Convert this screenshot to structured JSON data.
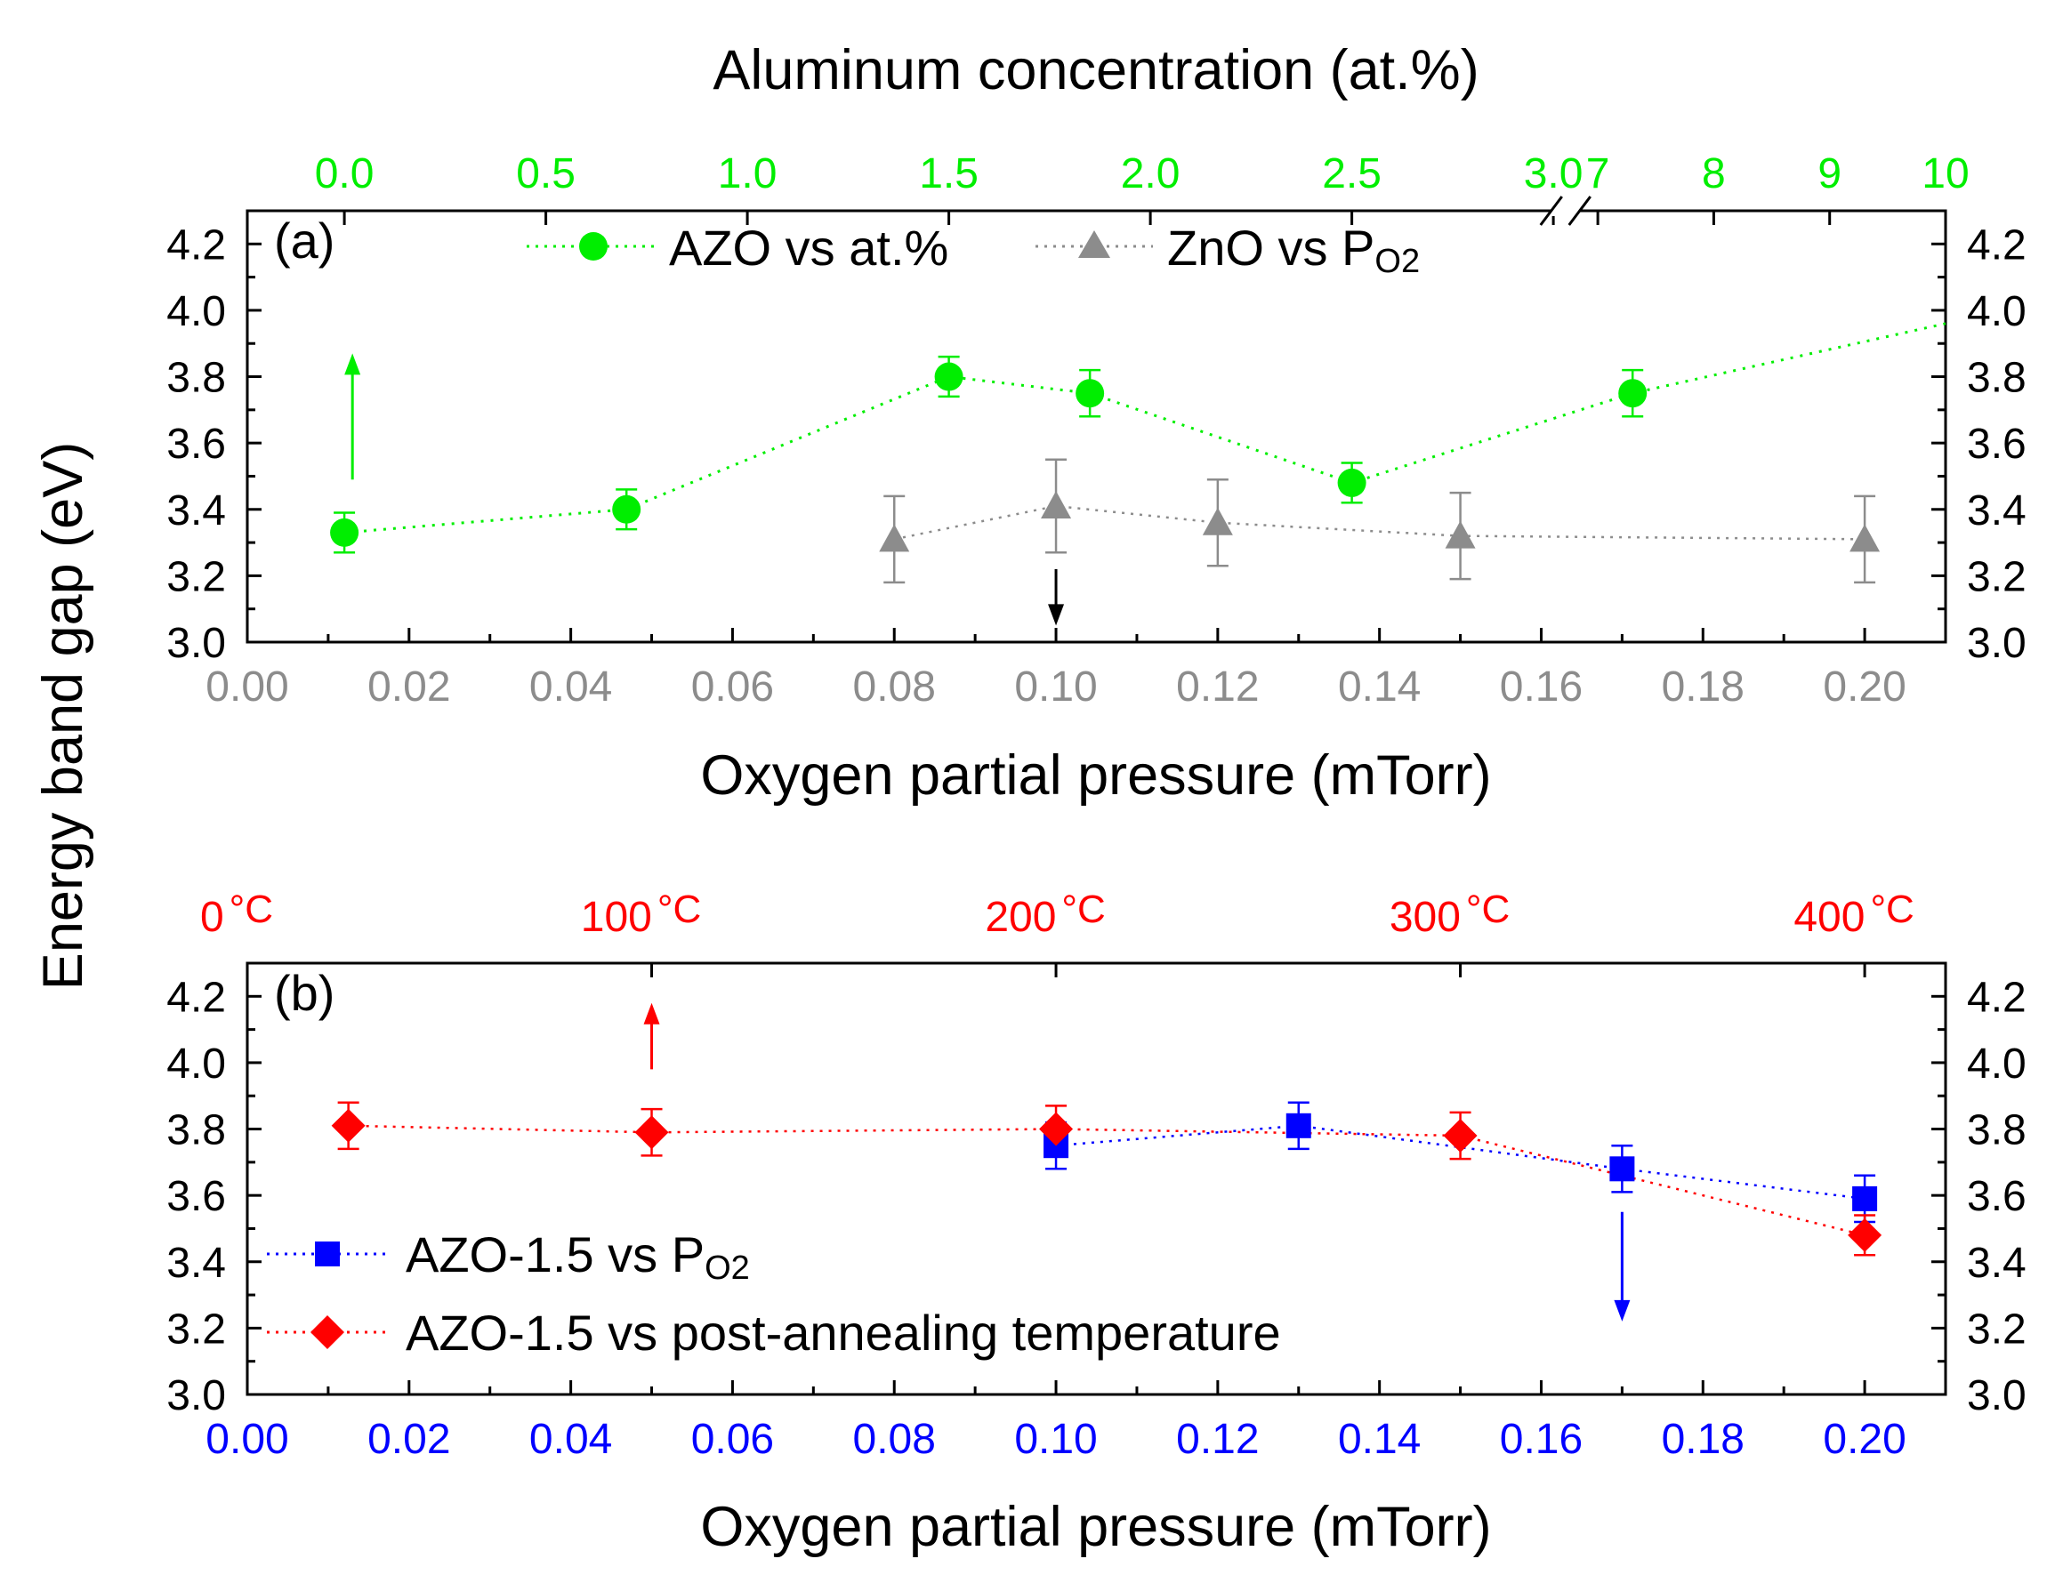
{
  "figure": {
    "ylabel": "Energy band gap (eV)"
  },
  "chart_data": [
    {
      "type": "scatter",
      "panel_label": "(a)",
      "xlabel": "Oxygen partial pressure (mTorr)",
      "top_xlabel": "Aluminum concentration (at.%)",
      "xlim": [
        0.0,
        0.21
      ],
      "ylim": [
        3.0,
        4.3
      ],
      "x_ticks": [
        0.0,
        0.02,
        0.04,
        0.06,
        0.08,
        0.1,
        0.12,
        0.14,
        0.16,
        0.18,
        0.2
      ],
      "x_tick_labels": [
        "0.00",
        "0.02",
        "0.04",
        "0.06",
        "0.08",
        "0.10",
        "0.12",
        "0.14",
        "0.16",
        "0.18",
        "0.20"
      ],
      "y_ticks": [
        3.0,
        3.2,
        3.4,
        3.6,
        3.8,
        4.0,
        4.2
      ],
      "y_tick_labels": [
        "3.0",
        "3.2",
        "3.4",
        "3.6",
        "3.8",
        "4.0",
        "4.2"
      ],
      "top_axis": {
        "color": "#00ee00",
        "break_at": 0.163,
        "segments": [
          {
            "data_range": [
              0,
              3.0
            ],
            "pressure_range": [
              0.012,
              0.1615
            ],
            "ticks": [
              0,
              0.5,
              1.0,
              1.5,
              2.0,
              2.5,
              3.0
            ],
            "labels": [
              "0.0",
              "0.5",
              "1.0",
              "1.5",
              "2.0",
              "2.5",
              "3.0"
            ]
          },
          {
            "data_range": [
              7,
              10
            ],
            "pressure_range": [
              0.167,
              0.21
            ],
            "ticks": [
              7,
              8,
              9,
              10
            ],
            "labels": [
              "7",
              "8",
              "9",
              "10"
            ]
          }
        ]
      },
      "series": [
        {
          "name": "AZO vs at.%",
          "marker": "circle",
          "color": "#00ee00",
          "x_axis": "top",
          "x": [
            0.0,
            0.7,
            1.5,
            1.85,
            2.5,
            7.3
          ],
          "y": [
            3.33,
            3.4,
            3.8,
            3.75,
            3.48,
            3.75
          ],
          "yerr": [
            0.06,
            0.06,
            0.06,
            0.07,
            0.06,
            0.07
          ],
          "trend_to": [
            10,
            3.96
          ]
        },
        {
          "name": "ZnO vs P",
          "name_sub": "O2",
          "marker": "triangle",
          "color": "#8c8c8c",
          "x_axis": "bottom",
          "x": [
            0.08,
            0.1,
            0.12,
            0.15,
            0.2
          ],
          "y": [
            3.31,
            3.41,
            3.36,
            3.32,
            3.31
          ],
          "yerr": [
            0.13,
            0.14,
            0.13,
            0.13,
            0.13
          ]
        }
      ],
      "annotations": [
        {
          "type": "arrow",
          "direction": "up",
          "color": "#00ee00",
          "x": 0.013,
          "from": 3.49,
          "to": 3.87
        },
        {
          "type": "arrow",
          "direction": "down",
          "color": "#000000",
          "x": 0.1,
          "from": 3.22,
          "to": 3.05
        }
      ],
      "colors": {
        "bottom_ticks": "#8c8c8c",
        "top_ticks": "#00ee00"
      }
    },
    {
      "type": "scatter",
      "panel_label": "(b)",
      "xlabel": "Oxygen partial pressure (mTorr)",
      "xlim": [
        0.0,
        0.21
      ],
      "ylim": [
        3.0,
        4.3
      ],
      "x_ticks": [
        0.0,
        0.02,
        0.04,
        0.06,
        0.08,
        0.1,
        0.12,
        0.14,
        0.16,
        0.18,
        0.2
      ],
      "x_tick_labels": [
        "0.00",
        "0.02",
        "0.04",
        "0.06",
        "0.08",
        "0.10",
        "0.12",
        "0.14",
        "0.16",
        "0.18",
        "0.20"
      ],
      "y_ticks": [
        3.0,
        3.2,
        3.4,
        3.6,
        3.8,
        4.0,
        4.2
      ],
      "y_tick_labels": [
        "3.0",
        "3.2",
        "3.4",
        "3.6",
        "3.8",
        "4.0",
        "4.2"
      ],
      "top_axis": {
        "color": "#ff0000",
        "unit": "°C",
        "data_range": [
          0,
          400
        ],
        "pressure_range": [
          0.0,
          0.2
        ],
        "labels": [
          "0",
          "100",
          "200",
          "300",
          "400"
        ]
      },
      "series": [
        {
          "name": "AZO-1.5 vs P",
          "name_sub": "O2",
          "marker": "square",
          "color": "#0000ff",
          "x_axis": "bottom",
          "x": [
            0.1,
            0.13,
            0.17,
            0.2
          ],
          "y": [
            3.75,
            3.81,
            3.68,
            3.59
          ],
          "yerr": [
            0.07,
            0.07,
            0.07,
            0.07
          ]
        },
        {
          "name": "AZO-1.5 vs post-annealing temperature",
          "marker": "diamond",
          "color": "#ff0000",
          "x_axis": "top",
          "x": [
            25,
            100,
            200,
            300,
            400
          ],
          "y": [
            3.81,
            3.79,
            3.8,
            3.78,
            3.48
          ],
          "yerr": [
            0.07,
            0.07,
            0.07,
            0.07,
            0.06
          ]
        }
      ],
      "annotations": [
        {
          "type": "arrow",
          "direction": "up",
          "color": "#ff0000",
          "x": 0.05,
          "from": 3.98,
          "to": 4.18
        },
        {
          "type": "arrow",
          "direction": "down",
          "color": "#0000ff",
          "x": 0.17,
          "from": 3.55,
          "to": 3.22
        }
      ],
      "colors": {
        "bottom_ticks": "#0000ff",
        "top_ticks": "#ff0000"
      }
    }
  ]
}
